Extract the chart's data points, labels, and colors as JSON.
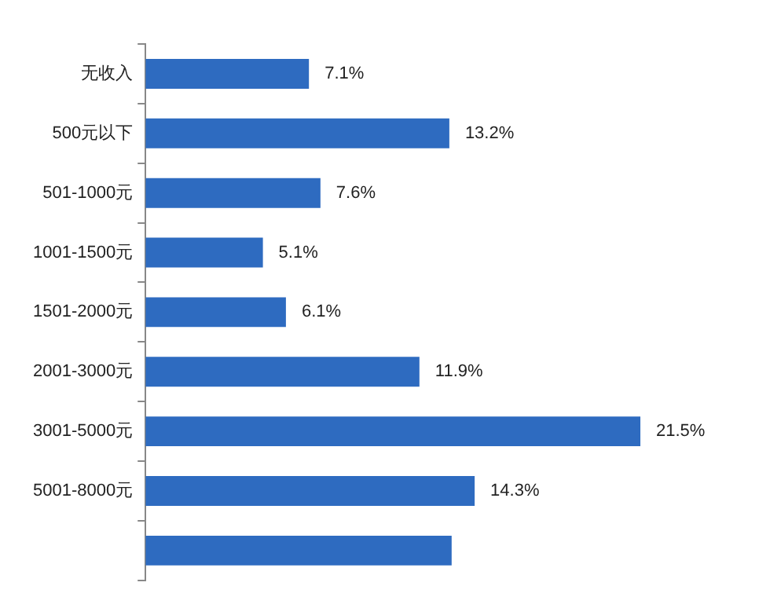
{
  "chart_data": {
    "type": "bar",
    "orientation": "horizontal",
    "categories": [
      "无收入",
      "500元以下",
      "501-1000元",
      "1001-1500元",
      "1501-2000元",
      "2001-3000元",
      "3001-5000元",
      "5001-8000元",
      null
    ],
    "values": [
      7.1,
      13.2,
      7.6,
      5.1,
      6.1,
      11.9,
      21.5,
      14.3,
      13.3
    ],
    "value_labels": [
      "7.1%",
      "13.2%",
      "7.6%",
      "5.1%",
      "6.1%",
      "11.9%",
      "21.5%",
      "14.3%",
      null
    ],
    "color": "#2e6bc0",
    "grid": false,
    "legend": false
  }
}
